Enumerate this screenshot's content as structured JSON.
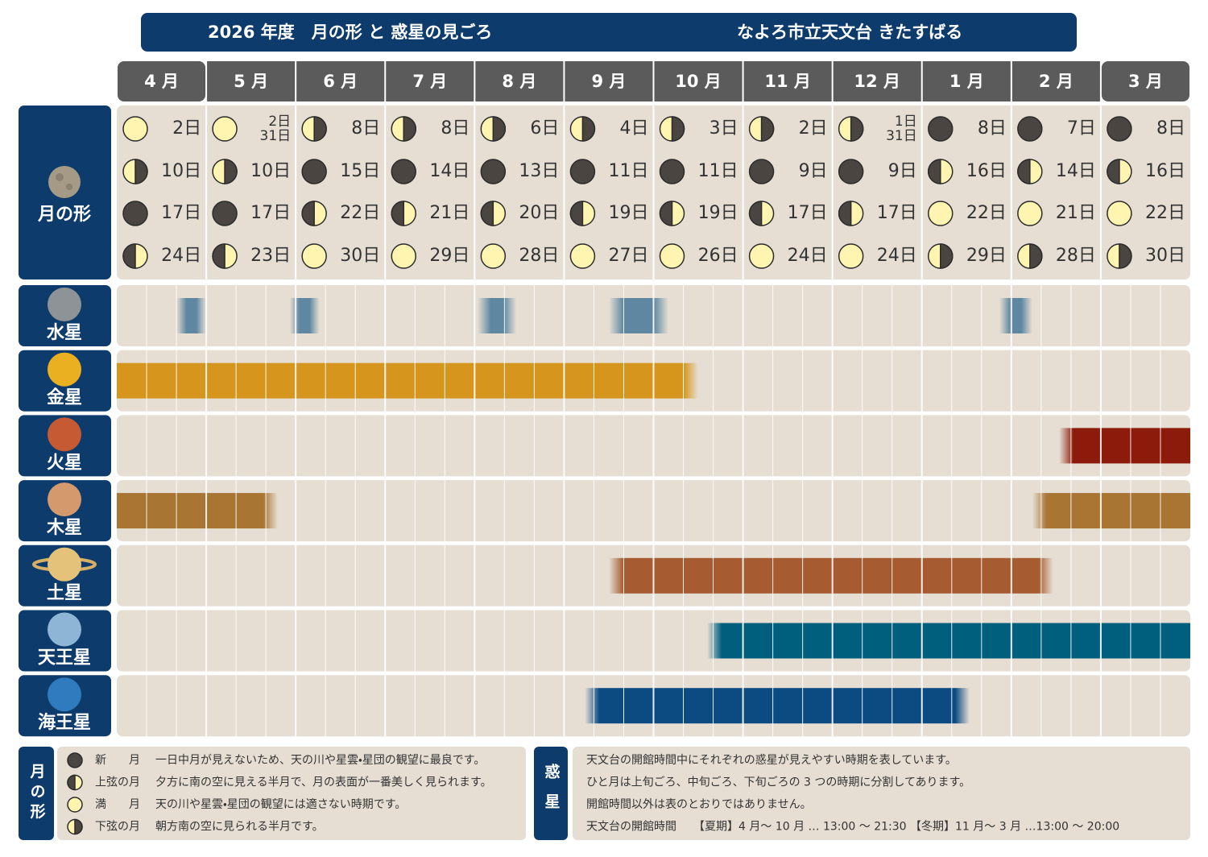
{
  "header": {
    "title": "2026 年度　月の形 と 惑星の見ごろ",
    "org": "なよろ市立天文台 きたすばる"
  },
  "months": [
    "4 月",
    "5 月",
    "6 月",
    "7 月",
    "8 月",
    "9 月",
    "10 月",
    "11 月",
    "12 月",
    "1 月",
    "2 月",
    "3 月"
  ],
  "moon": {
    "label": "月の形",
    "cells": [
      [
        {
          "phase": 2,
          "days": [
            "2日"
          ]
        },
        {
          "phase": 3,
          "days": [
            "10日"
          ]
        },
        {
          "phase": 0,
          "days": [
            "17日"
          ]
        },
        {
          "phase": 1,
          "days": [
            "24日"
          ]
        }
      ],
      [
        {
          "phase": 2,
          "days": [
            "2日",
            "31日"
          ]
        },
        {
          "phase": 3,
          "days": [
            "10日"
          ]
        },
        {
          "phase": 0,
          "days": [
            "17日"
          ]
        },
        {
          "phase": 1,
          "days": [
            "23日"
          ]
        }
      ],
      [
        {
          "phase": 3,
          "days": [
            "8日"
          ]
        },
        {
          "phase": 0,
          "days": [
            "15日"
          ]
        },
        {
          "phase": 1,
          "days": [
            "22日"
          ]
        },
        {
          "phase": 2,
          "days": [
            "30日"
          ]
        }
      ],
      [
        {
          "phase": 3,
          "days": [
            "8日"
          ]
        },
        {
          "phase": 0,
          "days": [
            "14日"
          ]
        },
        {
          "phase": 1,
          "days": [
            "21日"
          ]
        },
        {
          "phase": 2,
          "days": [
            "29日"
          ]
        }
      ],
      [
        {
          "phase": 3,
          "days": [
            "6日"
          ]
        },
        {
          "phase": 0,
          "days": [
            "13日"
          ]
        },
        {
          "phase": 1,
          "days": [
            "20日"
          ]
        },
        {
          "phase": 2,
          "days": [
            "28日"
          ]
        }
      ],
      [
        {
          "phase": 3,
          "days": [
            "4日"
          ]
        },
        {
          "phase": 0,
          "days": [
            "11日"
          ]
        },
        {
          "phase": 1,
          "days": [
            "19日"
          ]
        },
        {
          "phase": 2,
          "days": [
            "27日"
          ]
        }
      ],
      [
        {
          "phase": 3,
          "days": [
            "3日"
          ]
        },
        {
          "phase": 0,
          "days": [
            "11日"
          ]
        },
        {
          "phase": 1,
          "days": [
            "19日"
          ]
        },
        {
          "phase": 2,
          "days": [
            "26日"
          ]
        }
      ],
      [
        {
          "phase": 3,
          "days": [
            "2日"
          ]
        },
        {
          "phase": 0,
          "days": [
            "9日"
          ]
        },
        {
          "phase": 1,
          "days": [
            "17日"
          ]
        },
        {
          "phase": 2,
          "days": [
            "24日"
          ]
        }
      ],
      [
        {
          "phase": 3,
          "days": [
            "1日",
            "31日"
          ]
        },
        {
          "phase": 0,
          "days": [
            "9日"
          ]
        },
        {
          "phase": 1,
          "days": [
            "17日"
          ]
        },
        {
          "phase": 2,
          "days": [
            "24日"
          ]
        }
      ],
      [
        {
          "phase": 0,
          "days": [
            "8日"
          ]
        },
        {
          "phase": 1,
          "days": [
            "16日"
          ]
        },
        {
          "phase": 2,
          "days": [
            "22日"
          ]
        },
        {
          "phase": 3,
          "days": [
            "29日"
          ]
        }
      ],
      [
        {
          "phase": 0,
          "days": [
            "7日"
          ]
        },
        {
          "phase": 1,
          "days": [
            "14日"
          ]
        },
        {
          "phase": 2,
          "days": [
            "21日"
          ]
        },
        {
          "phase": 3,
          "days": [
            "28日"
          ]
        }
      ],
      [
        {
          "phase": 0,
          "days": [
            "8日"
          ]
        },
        {
          "phase": 1,
          "days": [
            "16日"
          ]
        },
        {
          "phase": 2,
          "days": [
            "22日"
          ]
        },
        {
          "phase": 3,
          "days": [
            "30日"
          ]
        }
      ]
    ]
  },
  "planets": [
    {
      "name": "水星",
      "color": "#5f87a2",
      "bars": [
        {
          "start": 2,
          "end": 3
        },
        {
          "start": 5.8,
          "end": 6.8
        },
        {
          "start": 12.1,
          "end": 13.4
        },
        {
          "start": 16.5,
          "end": 18.5
        },
        {
          "start": 29.6,
          "end": 30.7
        }
      ]
    },
    {
      "name": "金星",
      "color": "#d6961d",
      "bars": [
        {
          "start": 0,
          "end": 19.5
        }
      ]
    },
    {
      "name": "火星",
      "color": "#8c1b0b",
      "bars": [
        {
          "start": 31.6,
          "end": 36
        }
      ]
    },
    {
      "name": "木星",
      "color": "#a87533",
      "bars": [
        {
          "start": 0,
          "end": 5.4
        },
        {
          "start": 30.7,
          "end": 36
        }
      ]
    },
    {
      "name": "土星",
      "color": "#a65b31",
      "bars": [
        {
          "start": 16.5,
          "end": 31.4
        }
      ]
    },
    {
      "name": "天王星",
      "color": "#005f7d",
      "bars": [
        {
          "start": 19.8,
          "end": 36
        }
      ]
    },
    {
      "name": "海王星",
      "color": "#0b4b82",
      "bars": [
        {
          "start": 15.7,
          "end": 28.6
        }
      ]
    }
  ],
  "moon_legend": {
    "label": "月の形",
    "items": [
      {
        "name": "新　　月",
        "desc": "一日中月が見えないため、天の川や星雲・星団の観望に最良です。"
      },
      {
        "name": "上弦の月",
        "desc": "夕方に南の空に見える半月で、月の表面が一番美しく見られます。"
      },
      {
        "name": "満　　月",
        "desc": "天の川や星雲・星団の観望には適さない時期です。"
      },
      {
        "name": "下弦の月",
        "desc": "朝方南の空に見られる半月です。"
      }
    ]
  },
  "planet_notes": {
    "label": "惑星",
    "lines": [
      "天文台の開館時間中にそれぞれの惑星が見えやすい時期を表しています。",
      "ひと月は上旬ごろ、中旬ごろ、下旬ごろの 3 つの時期に分割してあります。",
      "開館時間以外は表のとおりではありません。",
      "天文台の開館時間　　【夏期】4 月～ 10 月 … 13:00 ～ 21:30 【冬期】11 月～ 3 月 …13:00 ～ 20:00"
    ]
  }
}
